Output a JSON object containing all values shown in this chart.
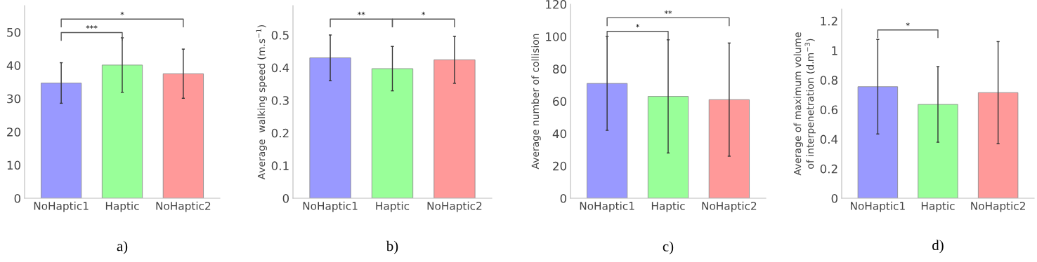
{
  "chart_data": [
    {
      "type": "bar",
      "categories": [
        "NoHaptic1",
        "Haptic",
        "NoHaptic2"
      ],
      "values": [
        34.7,
        40.1,
        37.5
      ],
      "errors": [
        6.1,
        8.2,
        7.4
      ],
      "colors": [
        "#9999ff",
        "#99ff99",
        "#ff9999"
      ],
      "ylim": [
        0,
        58
      ],
      "yticks": [
        0,
        10,
        20,
        30,
        40,
        50
      ],
      "grid": false,
      "annotations": [
        "***",
        "*",
        "a)"
      ]
    },
    {
      "type": "bar",
      "categories": [
        "NoHaptic1",
        "Haptic",
        "NoHaptic2"
      ],
      "values": [
        0.43,
        0.397,
        0.424
      ],
      "errors": [
        0.07,
        0.068,
        0.072
      ],
      "colors": [
        "#9999ff",
        "#99ff99",
        "#ff9999"
      ],
      "ylabel": "Average  walking speed (m.s$^{−1}$)",
      "ylim": [
        0,
        0.59
      ],
      "yticks": [
        0,
        0.1,
        0.2,
        0.3,
        0.4,
        0.5
      ],
      "grid": false,
      "annotations": [
        "**",
        "*",
        "b)"
      ]
    },
    {
      "type": "bar",
      "categories": [
        "NoHaptic1",
        "Haptic",
        "NoHaptic2"
      ],
      "values": [
        71,
        63,
        61
      ],
      "errors": [
        29,
        35,
        35
      ],
      "colors": [
        "#9999ff",
        "#99ff99",
        "#ff9999"
      ],
      "ylabel": "Average number of collision",
      "ylim": [
        0,
        120
      ],
      "yticks": [
        0,
        20,
        40,
        60,
        80,
        100,
        120
      ],
      "grid": false,
      "annotations": [
        "*",
        "**",
        "c)"
      ]
    },
    {
      "type": "bar",
      "categories": [
        "NoHaptic1",
        "Haptic",
        "NoHaptic2"
      ],
      "values": [
        0.755,
        0.635,
        0.715
      ],
      "errors": [
        0.32,
        0.256,
        0.345
      ],
      "colors": [
        "#9999ff",
        "#99ff99",
        "#ff9999"
      ],
      "ylabel": "Average of maximum volume\nof interpenetration (d.m$^{−3}$)",
      "ylim": [
        0,
        1.28
      ],
      "yticks": [
        0,
        0.2,
        0.4,
        0.6,
        0.8,
        {
          "value": 1,
          "label": "1"
        },
        1.2
      ],
      "grid": false,
      "annotations": [
        "*",
        "d)"
      ]
    }
  ]
}
